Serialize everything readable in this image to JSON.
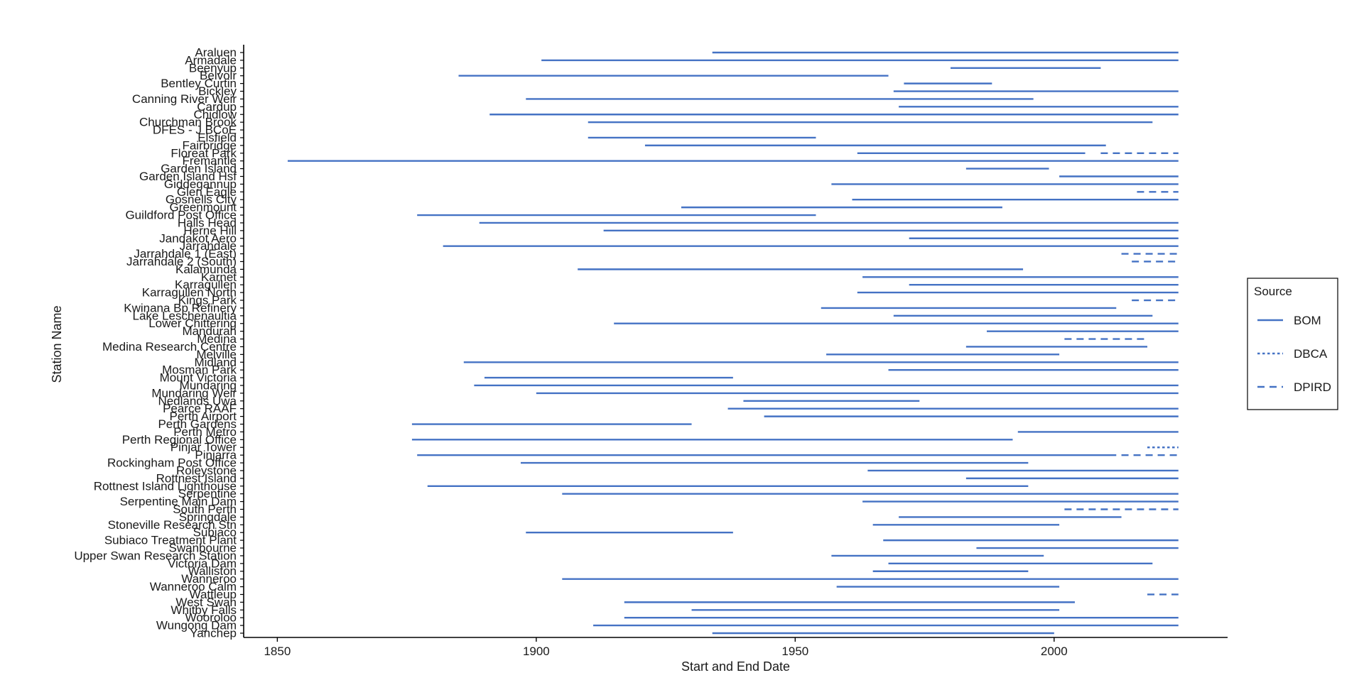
{
  "chart_data": {
    "type": "range",
    "title": "",
    "xlabel": "Start and End Date",
    "ylabel": "Station Name",
    "xlim": [
      1843.5,
      2033.5
    ],
    "xticks": [
      1850,
      1900,
      1950,
      2000
    ],
    "grid": false,
    "legend": {
      "title": "Source",
      "placement": "right",
      "entries": [
        {
          "name": "BOM",
          "dash": "solid"
        },
        {
          "name": "DBCA",
          "dash": "dotted"
        },
        {
          "name": "DPIRD",
          "dash": "dashed"
        }
      ]
    },
    "colors": {
      "line": "#4472c4",
      "axis": "#000000",
      "text": "#1a1a1a"
    },
    "stations": [
      "Araluen",
      "Armadale",
      "Beenyup",
      "Belvoir",
      "Bentley Curtin",
      "Bickley",
      "Canning River Weir",
      "Cardup",
      "Chidlow",
      "Churchman Brook",
      "DFES - J BCoE",
      "Elsfield",
      "Fairbridge",
      "Floreat Park",
      "Fremantle",
      "Garden Island",
      "Garden Island Hsf",
      "Giddegannup",
      "Glen Eagle",
      "Gosnells City",
      "Greenmount",
      "Guildford Post Office",
      "Halls Head",
      "Herne Hill",
      "Jandakot Aero",
      "Jarrahdale",
      "Jarrahdale 1 (East)",
      "Jarrahdale 2 (South)",
      "Kalamunda",
      "Karnet",
      "Karragullen",
      "Karragullen North",
      "Kings Park",
      "Kwinana Bp Refinery",
      "Lake Leschenaultia",
      "Lower Chittering",
      "Mandurah",
      "Medina",
      "Medina Research Centre",
      "Melville",
      "Midland",
      "Mosman Park",
      "Mount Victoria",
      "Mundaring",
      "Mundaring Weir",
      "Nedlands Uwa",
      "Pearce RAAF",
      "Perth Airport",
      "Perth Gardens",
      "Perth Metro",
      "Perth Regional Office",
      "Pinjar Tower",
      "Pinjarra",
      "Rockingham Post Office",
      "Roleystone",
      "Rottnest Island",
      "Rottnest Island Lighthouse",
      "Serpentine",
      "Serpentine Main Dam",
      "South Perth",
      "Springdale",
      "Stoneville Research Stn",
      "Subiaco",
      "Subiaco Treatment Plant",
      "Swanbourne",
      "Upper Swan Research Station",
      "Victoria Dam",
      "Walliston",
      "Wanneroo",
      "Wanneroo Calm",
      "Wattleup",
      "West Swan",
      "Whitby Falls",
      "Wooroloo",
      "Wungong Dam",
      "Yanchep"
    ],
    "series": [
      {
        "name": "BOM",
        "dash": "solid",
        "segments": [
          {
            "station": "Araluen",
            "start": 1934,
            "end": 2024
          },
          {
            "station": "Armadale",
            "start": 1901,
            "end": 2024
          },
          {
            "station": "Beenyup",
            "start": 1980,
            "end": 2009
          },
          {
            "station": "Belvoir",
            "start": 1885,
            "end": 1968
          },
          {
            "station": "Bentley Curtin",
            "start": 1971,
            "end": 1988
          },
          {
            "station": "Bickley",
            "start": 1969,
            "end": 2024
          },
          {
            "station": "Canning River Weir",
            "start": 1898,
            "end": 1996
          },
          {
            "station": "Cardup",
            "start": 1970,
            "end": 2024
          },
          {
            "station": "Chidlow",
            "start": 1891,
            "end": 2024
          },
          {
            "station": "Churchman Brook",
            "start": 1910,
            "end": 2019
          },
          {
            "station": "Elsfield",
            "start": 1910,
            "end": 1954
          },
          {
            "station": "Fairbridge",
            "start": 1921,
            "end": 2010
          },
          {
            "station": "Floreat Park",
            "start": 1962,
            "end": 2006
          },
          {
            "station": "Fremantle",
            "start": 1852,
            "end": 2024
          },
          {
            "station": "Garden Island",
            "start": 1983,
            "end": 1999
          },
          {
            "station": "Garden Island Hsf",
            "start": 2001,
            "end": 2024
          },
          {
            "station": "Giddegannup",
            "start": 1957,
            "end": 2024
          },
          {
            "station": "Gosnells City",
            "start": 1961,
            "end": 2024
          },
          {
            "station": "Greenmount",
            "start": 1928,
            "end": 1990
          },
          {
            "station": "Guildford Post Office",
            "start": 1877,
            "end": 1954
          },
          {
            "station": "Halls Head",
            "start": 1889,
            "end": 2024
          },
          {
            "station": "Herne Hill",
            "start": 1913,
            "end": 2024
          },
          {
            "station": "Jandakot Aero",
            "start": 1972,
            "end": 2024
          },
          {
            "station": "Jarrahdale",
            "start": 1882,
            "end": 2024
          },
          {
            "station": "Kalamunda",
            "start": 1908,
            "end": 1994
          },
          {
            "station": "Karnet",
            "start": 1963,
            "end": 2024
          },
          {
            "station": "Karragullen",
            "start": 1972,
            "end": 2024
          },
          {
            "station": "Karragullen North",
            "start": 1962,
            "end": 2024
          },
          {
            "station": "Kwinana Bp Refinery",
            "start": 1955,
            "end": 2012
          },
          {
            "station": "Lake Leschenaultia",
            "start": 1969,
            "end": 2019
          },
          {
            "station": "Lower Chittering",
            "start": 1915,
            "end": 2024
          },
          {
            "station": "Mandurah",
            "start": 1987,
            "end": 2024
          },
          {
            "station": "Medina Research Centre",
            "start": 1983,
            "end": 2018
          },
          {
            "station": "Melville",
            "start": 1956,
            "end": 2001
          },
          {
            "station": "Midland",
            "start": 1886,
            "end": 2024
          },
          {
            "station": "Mosman Park",
            "start": 1968,
            "end": 2024
          },
          {
            "station": "Mount Victoria",
            "start": 1890,
            "end": 1938
          },
          {
            "station": "Mundaring",
            "start": 1888,
            "end": 2024
          },
          {
            "station": "Mundaring Weir",
            "start": 1900,
            "end": 2024
          },
          {
            "station": "Nedlands Uwa",
            "start": 1940,
            "end": 1974
          },
          {
            "station": "Pearce RAAF",
            "start": 1937,
            "end": 2024
          },
          {
            "station": "Perth Airport",
            "start": 1944,
            "end": 2024
          },
          {
            "station": "Perth Gardens",
            "start": 1876,
            "end": 1930
          },
          {
            "station": "Perth Metro",
            "start": 1993,
            "end": 2024
          },
          {
            "station": "Perth Regional Office",
            "start": 1876,
            "end": 1992
          },
          {
            "station": "Pinjarra",
            "start": 1877,
            "end": 2012
          },
          {
            "station": "Rockingham Post Office",
            "start": 1897,
            "end": 1995
          },
          {
            "station": "Roleystone",
            "start": 1964,
            "end": 2024
          },
          {
            "station": "Rottnest Island",
            "start": 1983,
            "end": 2024
          },
          {
            "station": "Rottnest Island Lighthouse",
            "start": 1879,
            "end": 1995
          },
          {
            "station": "Serpentine",
            "start": 1905,
            "end": 2024
          },
          {
            "station": "Serpentine Main Dam",
            "start": 1963,
            "end": 2024
          },
          {
            "station": "Springdale",
            "start": 1970,
            "end": 2013
          },
          {
            "station": "Stoneville Research Stn",
            "start": 1965,
            "end": 2001
          },
          {
            "station": "Subiaco",
            "start": 1898,
            "end": 1938
          },
          {
            "station": "Subiaco Treatment Plant",
            "start": 1967,
            "end": 2024
          },
          {
            "station": "Swanbourne",
            "start": 1985,
            "end": 2024
          },
          {
            "station": "Upper Swan Research Station",
            "start": 1957,
            "end": 1998
          },
          {
            "station": "Victoria Dam",
            "start": 1968,
            "end": 2019
          },
          {
            "station": "Walliston",
            "start": 1965,
            "end": 1995
          },
          {
            "station": "Wanneroo",
            "start": 1905,
            "end": 2024
          },
          {
            "station": "Wanneroo Calm",
            "start": 1958,
            "end": 2001
          },
          {
            "station": "West Swan",
            "start": 1917,
            "end": 2004
          },
          {
            "station": "Whitby Falls",
            "start": 1930,
            "end": 2001
          },
          {
            "station": "Wooroloo",
            "start": 1917,
            "end": 2024
          },
          {
            "station": "Wungong Dam",
            "start": 1911,
            "end": 2024
          },
          {
            "station": "Yanchep",
            "start": 1934,
            "end": 2000
          }
        ]
      },
      {
        "name": "DBCA",
        "dash": "dotted",
        "segments": [
          {
            "station": "Pinjar Tower",
            "start": 2018,
            "end": 2024
          }
        ]
      },
      {
        "name": "DPIRD",
        "dash": "dashed",
        "segments": [
          {
            "station": "Floreat Park",
            "start": 2009,
            "end": 2024
          },
          {
            "station": "Glen Eagle",
            "start": 2016,
            "end": 2024
          },
          {
            "station": "Jarrahdale 1 (East)",
            "start": 2013,
            "end": 2024
          },
          {
            "station": "Jarrahdale 2 (South)",
            "start": 2015,
            "end": 2024
          },
          {
            "station": "Kings Park",
            "start": 2015,
            "end": 2024
          },
          {
            "station": "Medina",
            "start": 2002,
            "end": 2018
          },
          {
            "station": "Pinjarra",
            "start": 2013,
            "end": 2024
          },
          {
            "station": "South Perth",
            "start": 2002,
            "end": 2024
          },
          {
            "station": "Wattleup",
            "start": 2018,
            "end": 2024
          }
        ]
      }
    ]
  }
}
